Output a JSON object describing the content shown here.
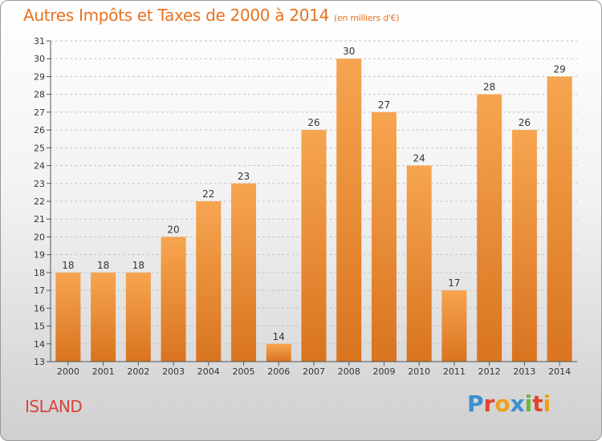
{
  "header": {
    "title": "Autres Impôts et Taxes de 2000 à 2014",
    "unit": "(en milliers d'€)"
  },
  "footer": {
    "place": "ISLAND",
    "brand": "Proxiti",
    "brand_letters": [
      {
        "ch": "P",
        "color": "#3a8fd1"
      },
      {
        "ch": "r",
        "color": "#e2442f"
      },
      {
        "ch": "o",
        "color": "#f0a019"
      },
      {
        "ch": "x",
        "color": "#3a8fd1"
      },
      {
        "ch": "i",
        "color": "#6db43c"
      },
      {
        "ch": "t",
        "color": "#e2442f"
      },
      {
        "ch": "i",
        "color": "#f0a019"
      }
    ]
  },
  "chart_data": {
    "type": "bar",
    "title": "Autres Impôts et Taxes de 2000 à 2014",
    "subtitle": "(en milliers d'€)",
    "categories": [
      "2000",
      "2001",
      "2002",
      "2003",
      "2004",
      "2005",
      "2006",
      "2007",
      "2008",
      "2009",
      "2010",
      "2011",
      "2012",
      "2013",
      "2014"
    ],
    "values": [
      18,
      18,
      18,
      20,
      22,
      23,
      14,
      26,
      30,
      27,
      24,
      17,
      28,
      26,
      29
    ],
    "ylim": [
      13,
      31
    ],
    "yticks": [
      13,
      14,
      15,
      16,
      17,
      18,
      19,
      20,
      21,
      22,
      23,
      24,
      25,
      26,
      27,
      28,
      29,
      30,
      31
    ],
    "grid": true,
    "bar_color_light": "#f7a550",
    "bar_color_dark": "#d9741f"
  }
}
